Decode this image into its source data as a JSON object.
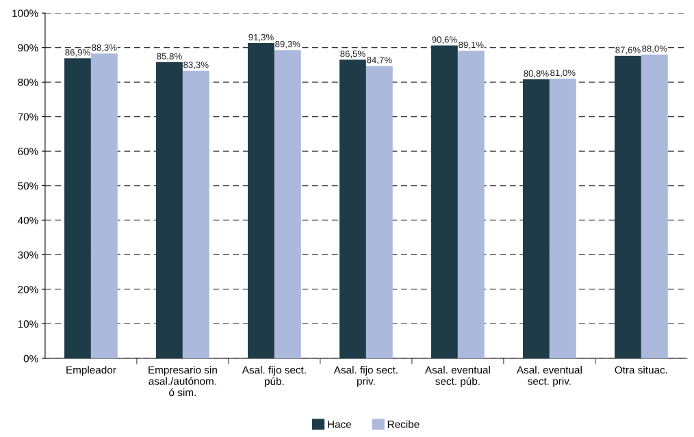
{
  "chart_data": {
    "type": "bar",
    "categories": [
      "Empleador",
      "Empresario sin\nasal./autónom.\nó sim.",
      "Asal. fijo sect.\npúb.",
      "Asal. fijo sect.\npriv.",
      "Asal. eventual\nsect. púb.",
      "Asal. eventual\nsect. priv.",
      "Otra situac."
    ],
    "series": [
      {
        "name": "Hace",
        "color": "#1e3b48",
        "values": [
          86.9,
          85.8,
          91.3,
          86.5,
          90.6,
          80.8,
          87.6
        ],
        "value_labels": [
          "86,9%",
          "85,8%",
          "91,3%",
          "86,5%",
          "90,6%",
          "80,8%",
          "87,6%"
        ]
      },
      {
        "name": "Recibe",
        "color": "#abb9dd",
        "values": [
          88.3,
          83.3,
          89.3,
          84.7,
          89.1,
          81.0,
          88.0
        ],
        "value_labels": [
          "88,3%",
          "83,3%",
          "89,3%",
          "84,7%",
          "89,1%",
          "81,0%",
          "88,0%"
        ]
      }
    ],
    "ylim": [
      0,
      100
    ],
    "yticks": [
      {
        "value": 0,
        "label": "0%"
      },
      {
        "value": 10,
        "label": "10%"
      },
      {
        "value": 20,
        "label": "20%"
      },
      {
        "value": 30,
        "label": "30%"
      },
      {
        "value": 40,
        "label": "40%"
      },
      {
        "value": 50,
        "label": "50%"
      },
      {
        "value": 60,
        "label": "60%"
      },
      {
        "value": 70,
        "label": "70%"
      },
      {
        "value": 80,
        "label": "80%"
      },
      {
        "value": 90,
        "label": "90%"
      },
      {
        "value": 100,
        "label": "100%"
      }
    ],
    "grid": "y",
    "line_style": "dashed",
    "legend": "bottom"
  }
}
